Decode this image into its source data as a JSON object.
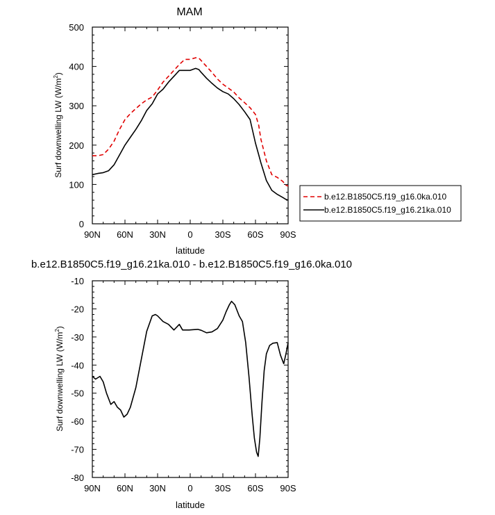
{
  "chart_data": [
    {
      "type": "line",
      "title": "MAM",
      "xlabel": "latitude",
      "ylabel_main": "Surf downwelling LW (W/m",
      "ylabel_sup": "2",
      "ylabel_tail": ")",
      "xlim": [
        -90,
        90
      ],
      "ylim": [
        0,
        500
      ],
      "xticks": [
        -90,
        -60,
        -30,
        0,
        30,
        60,
        90
      ],
      "xtick_labels": [
        "90N",
        "60N",
        "30N",
        "0",
        "30S",
        "60S",
        "90S"
      ],
      "yticks": [
        0,
        100,
        200,
        300,
        400,
        500
      ],
      "ytick_labels": [
        "0",
        "100",
        "200",
        "300",
        "400",
        "500"
      ],
      "grid": false,
      "legend_position": "right",
      "series": [
        {
          "name": "b.e12.B1850C5.f19_g16.0ka.010",
          "color": "#e00000",
          "dash": "dashed",
          "x": [
            -90,
            -85,
            -80,
            -75,
            -70,
            -65,
            -60,
            -55,
            -50,
            -45,
            -40,
            -35,
            -30,
            -25,
            -20,
            -15,
            -10,
            -5,
            0,
            5,
            8,
            10,
            15,
            20,
            25,
            30,
            35,
            40,
            45,
            50,
            55,
            60,
            63,
            65,
            70,
            75,
            80,
            85,
            88,
            90
          ],
          "y": [
            173,
            173,
            176,
            190,
            210,
            240,
            265,
            280,
            293,
            305,
            315,
            322,
            340,
            360,
            375,
            390,
            405,
            418,
            418,
            422,
            421,
            415,
            400,
            385,
            368,
            355,
            345,
            335,
            320,
            308,
            295,
            278,
            250,
            215,
            160,
            125,
            118,
            108,
            98,
            96
          ]
        },
        {
          "name": "b.e12.B1850C5.f19_g16.21ka.010",
          "color": "#000000",
          "dash": "solid",
          "x": [
            -90,
            -85,
            -80,
            -75,
            -70,
            -65,
            -60,
            -55,
            -50,
            -45,
            -40,
            -35,
            -30,
            -25,
            -20,
            -15,
            -10,
            -5,
            0,
            5,
            8,
            10,
            15,
            20,
            25,
            30,
            35,
            40,
            45,
            50,
            55,
            60,
            63,
            65,
            70,
            75,
            80,
            85,
            88,
            90
          ],
          "y": [
            125,
            128,
            130,
            135,
            150,
            175,
            200,
            220,
            240,
            262,
            288,
            305,
            330,
            342,
            360,
            375,
            390,
            390,
            390,
            395,
            392,
            385,
            370,
            357,
            345,
            336,
            330,
            318,
            303,
            285,
            265,
            205,
            175,
            155,
            110,
            85,
            75,
            67,
            62,
            60
          ]
        }
      ]
    },
    {
      "type": "line",
      "title": "b.e12.B1850C5.f19_g16.21ka.010 - b.e12.B1850C5.f19_g16.0ka.010",
      "xlabel": "latitude",
      "ylabel_main": "Surf downwelling LW (W/m",
      "ylabel_sup": "2",
      "ylabel_tail": ")",
      "xlim": [
        -90,
        90
      ],
      "ylim": [
        -80,
        -10
      ],
      "xticks": [
        -90,
        -60,
        -30,
        0,
        30,
        60,
        90
      ],
      "xtick_labels": [
        "90N",
        "60N",
        "30N",
        "0",
        "30S",
        "60S",
        "90S"
      ],
      "yticks": [
        -10,
        -20,
        -30,
        -40,
        -50,
        -60,
        -70,
        -80
      ],
      "ytick_labels": [
        "-10",
        "-20",
        "-30",
        "-40",
        "-50",
        "-60",
        "-70",
        "-80"
      ],
      "grid": false,
      "series": [
        {
          "color": "#000000",
          "dash": "solid",
          "x": [
            -90,
            -87,
            -83,
            -80,
            -77,
            -73,
            -70,
            -67,
            -64,
            -61,
            -58,
            -55,
            -50,
            -45,
            -40,
            -35,
            -32,
            -30,
            -25,
            -20,
            -15,
            -10,
            -7,
            -4,
            -1,
            3,
            7,
            10,
            15,
            20,
            25,
            30,
            33,
            36,
            38,
            41,
            45,
            48,
            51,
            54,
            57,
            59,
            61,
            62.5,
            64,
            66,
            68,
            70,
            73,
            76,
            80,
            83,
            86,
            88,
            90
          ],
          "y": [
            -44,
            -45,
            -44,
            -46,
            -50,
            -54,
            -53,
            -55,
            -56,
            -58.5,
            -57.5,
            -55,
            -48,
            -38,
            -28,
            -22.5,
            -22,
            -22.5,
            -24.5,
            -25.5,
            -27.5,
            -25.5,
            -27.5,
            -27.5,
            -27.5,
            -27.4,
            -27.3,
            -27.6,
            -28.5,
            -28.2,
            -27,
            -24,
            -21,
            -18.5,
            -17.3,
            -18.5,
            -22.5,
            -24.5,
            -32,
            -44,
            -58,
            -66,
            -71,
            -72.5,
            -66,
            -53,
            -42,
            -36,
            -33,
            -32.2,
            -32,
            -36.5,
            -39.5,
            -36,
            -32
          ]
        }
      ]
    }
  ]
}
